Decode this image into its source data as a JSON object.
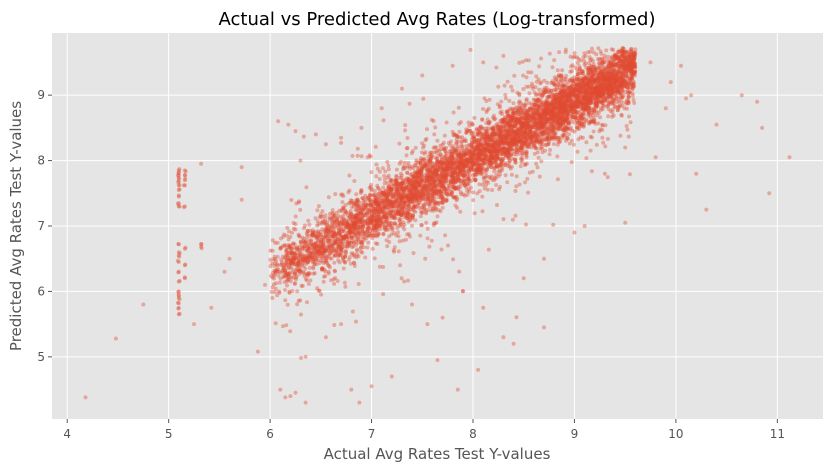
{
  "chart_data": {
    "type": "scatter",
    "title": "Actual vs Predicted Avg Rates (Log-transformed)",
    "xlabel": "Actual Avg Rates Test Y-values",
    "ylabel": "Predicted Avg Rates Test Y-values",
    "xlim": [
      3.85,
      11.45
    ],
    "ylim": [
      4.05,
      9.95
    ],
    "xticks": [
      4,
      5,
      6,
      7,
      8,
      9,
      10,
      11
    ],
    "yticks": [
      5,
      6,
      7,
      8,
      9
    ],
    "xtick_labels": [
      "4",
      "5",
      "6",
      "7",
      "8",
      "9",
      "10",
      "11"
    ],
    "ytick_labels": [
      "5",
      "6",
      "7",
      "8",
      "9"
    ],
    "grid": true,
    "point_color": "#E24A33",
    "background_color": "#E5E5E5",
    "grid_color": "#FFFFFF",
    "point_alpha": 0.4,
    "series": [
      {
        "trend": {
          "slope": 0.88,
          "intercept": 1.0
        },
        "main_cloud_x_range": [
          6.0,
          9.6
        ],
        "points": [
          [
            4.18,
            4.38
          ],
          [
            4.48,
            5.28
          ],
          [
            4.75,
            5.8
          ],
          [
            5.25,
            5.5
          ],
          [
            5.32,
            7.95
          ],
          [
            5.42,
            5.75
          ],
          [
            5.55,
            6.3
          ],
          [
            5.6,
            6.5
          ],
          [
            5.72,
            7.9
          ],
          [
            5.72,
            7.4
          ],
          [
            5.88,
            5.08
          ],
          [
            5.95,
            6.1
          ],
          [
            6.1,
            4.5
          ],
          [
            6.15,
            4.38
          ],
          [
            6.2,
            4.4
          ],
          [
            6.25,
            4.45
          ],
          [
            6.35,
            4.3
          ],
          [
            6.08,
            8.6
          ],
          [
            6.18,
            8.55
          ],
          [
            6.25,
            8.45
          ],
          [
            6.3,
            8.0
          ],
          [
            6.35,
            5.0
          ],
          [
            6.55,
            5.3
          ],
          [
            6.7,
            5.5
          ],
          [
            6.8,
            4.5
          ],
          [
            6.88,
            4.3
          ],
          [
            7.0,
            4.55
          ],
          [
            7.2,
            4.7
          ],
          [
            7.4,
            5.8
          ],
          [
            7.55,
            5.5
          ],
          [
            7.65,
            4.95
          ],
          [
            7.7,
            5.6
          ],
          [
            7.85,
            4.5
          ],
          [
            7.9,
            6.0
          ],
          [
            8.05,
            4.8
          ],
          [
            8.3,
            5.3
          ],
          [
            8.4,
            5.2
          ],
          [
            8.7,
            5.45
          ],
          [
            8.1,
            5.75
          ],
          [
            8.5,
            6.2
          ],
          [
            8.7,
            6.5
          ],
          [
            9.0,
            6.9
          ],
          [
            9.1,
            7.0
          ],
          [
            9.5,
            7.05
          ],
          [
            10.05,
            9.45
          ],
          [
            10.1,
            8.95
          ],
          [
            10.15,
            9.0
          ],
          [
            10.2,
            7.8
          ],
          [
            10.3,
            7.25
          ],
          [
            10.4,
            8.55
          ],
          [
            10.65,
            9.0
          ],
          [
            10.8,
            8.9
          ],
          [
            10.85,
            8.5
          ],
          [
            10.92,
            7.5
          ],
          [
            11.12,
            8.05
          ],
          [
            9.6,
            9.7
          ],
          [
            9.75,
            9.5
          ],
          [
            9.9,
            8.8
          ],
          [
            9.95,
            9.2
          ],
          [
            9.5,
            8.2
          ],
          [
            9.3,
            7.8
          ],
          [
            9.8,
            8.05
          ],
          [
            6.45,
            8.4
          ],
          [
            6.55,
            8.25
          ],
          [
            6.7,
            8.35
          ],
          [
            6.9,
            8.5
          ],
          [
            7.1,
            8.8
          ],
          [
            7.3,
            9.1
          ],
          [
            7.5,
            9.3
          ],
          [
            7.8,
            9.45
          ],
          [
            8.1,
            9.5
          ],
          [
            8.3,
            9.6
          ]
        ],
        "column_clusters": [
          {
            "x": 5.1,
            "y_values": [
              5.65,
              5.75,
              5.82,
              5.9,
              5.95,
              6.0,
              6.15,
              6.3,
              6.45,
              6.55,
              6.6,
              6.72,
              7.3,
              7.35,
              7.45,
              7.55,
              7.62,
              7.68,
              7.72,
              7.78,
              7.82,
              7.85
            ]
          },
          {
            "x": 5.16,
            "y_values": [
              6.2,
              6.4,
              6.65,
              7.3,
              7.62,
              7.7,
              7.78,
              7.85
            ]
          },
          {
            "x": 5.32,
            "y_values": [
              6.68,
              6.72
            ]
          }
        ]
      }
    ]
  }
}
